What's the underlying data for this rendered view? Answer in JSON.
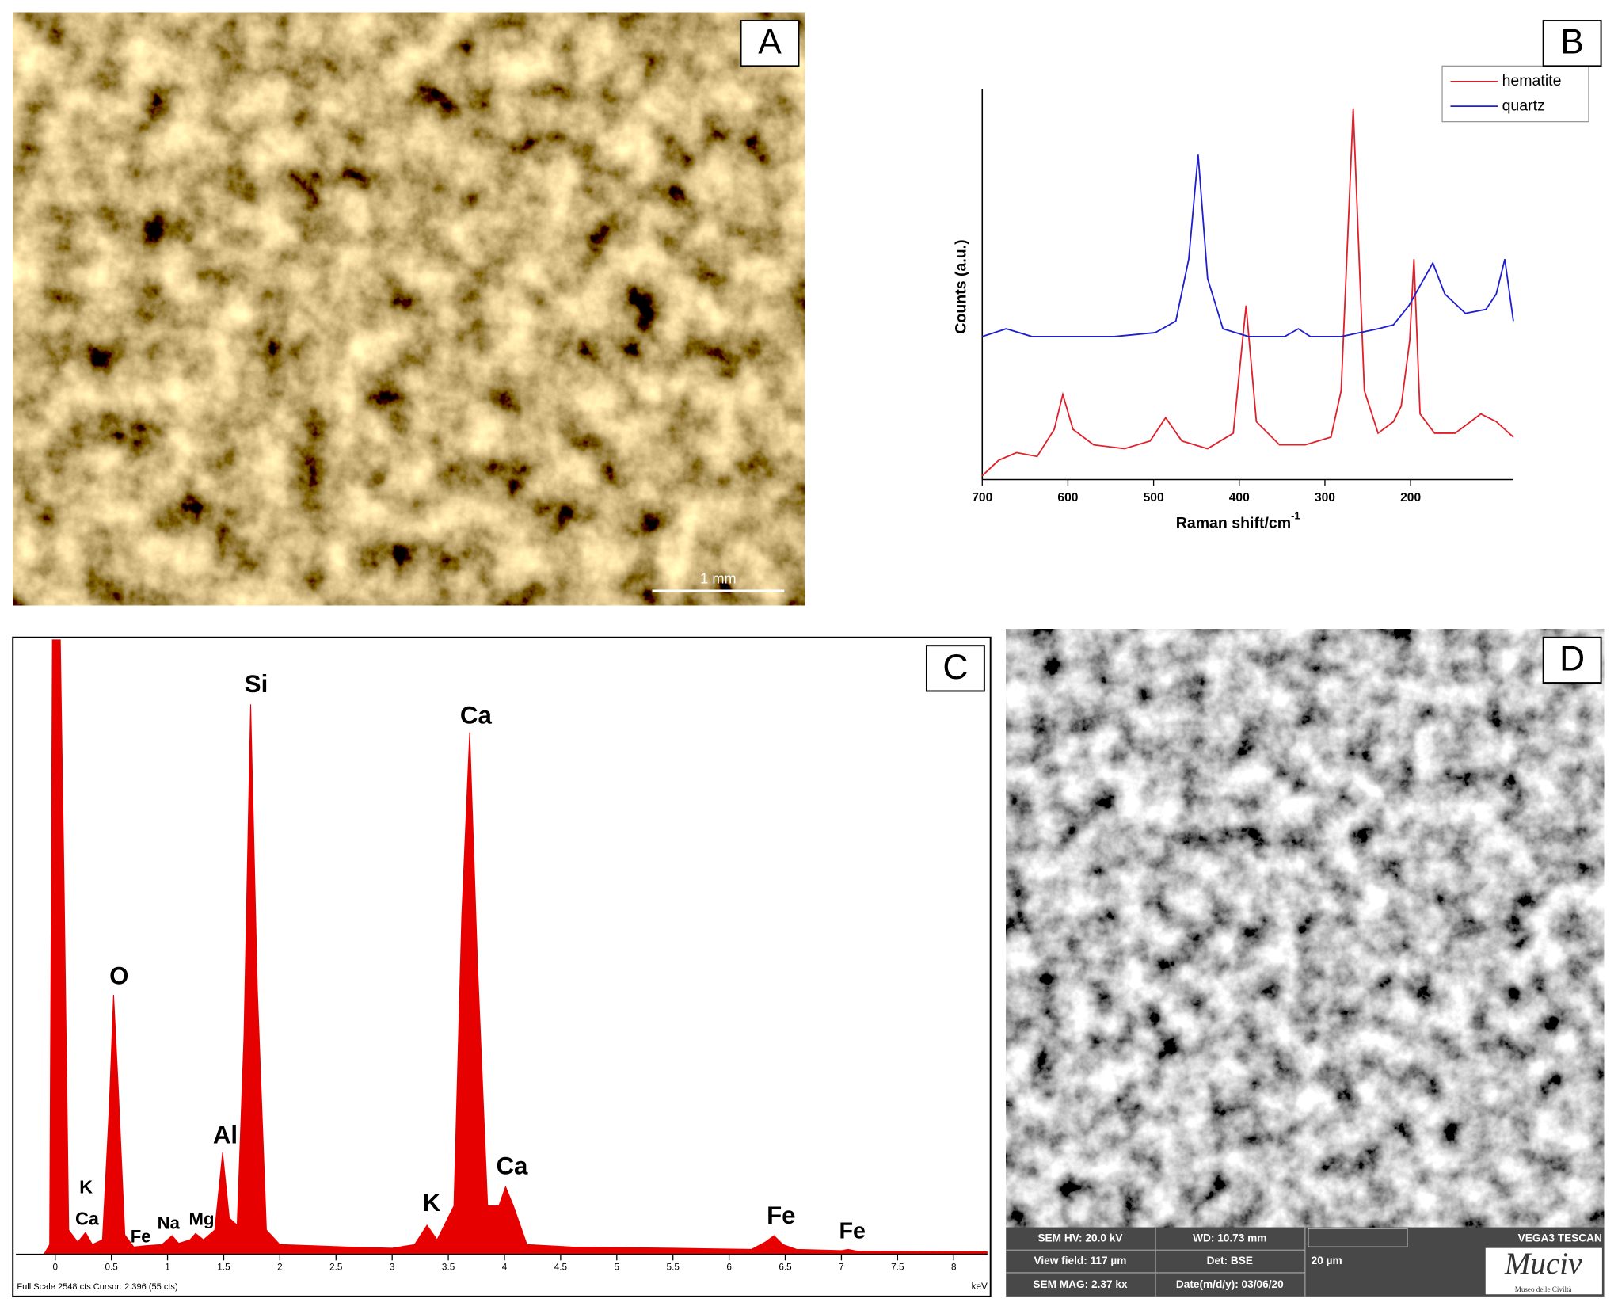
{
  "panel_labels": [
    "A",
    "B",
    "C",
    "D"
  ],
  "micrograph": {
    "scale_bar": "1 mm"
  },
  "chart_data": [
    {
      "type": "line",
      "xlabel": "Raman shift/cm",
      "xlabel_sup": "-1",
      "ylabel": "Counts (a.u.)",
      "xlim": [
        700,
        80
      ],
      "xticks": [
        700,
        600,
        500,
        400,
        300,
        200
      ],
      "ylim": [
        0,
        100
      ],
      "legend": "upper right",
      "series": [
        {
          "name": "hematite",
          "color": "#e0202a",
          "x": [
            700,
            681,
            660,
            636,
            616,
            606,
            594,
            570,
            534,
            504,
            486,
            467,
            437,
            407,
            392,
            380,
            353,
            323,
            293,
            281,
            267,
            254,
            238,
            220,
            211,
            201,
            196,
            189,
            172,
            148,
            130,
            118,
            100,
            80
          ],
          "values": [
            1,
            5,
            7,
            6,
            13,
            22,
            13,
            9,
            8,
            10,
            16,
            10,
            8,
            12,
            45,
            15,
            9,
            9,
            11,
            23,
            96,
            23,
            12,
            15,
            19,
            36,
            57,
            17,
            12,
            12,
            15,
            17,
            15,
            11
          ]
        },
        {
          "name": "quartz",
          "color": "#1f1fd0",
          "x": [
            700,
            672,
            642,
            594,
            546,
            498,
            474,
            459,
            448,
            437,
            419,
            389,
            365,
            347,
            331,
            317,
            281,
            238,
            220,
            202,
            174,
            160,
            136,
            112,
            100,
            90,
            80
          ],
          "values": [
            37,
            39,
            37,
            37,
            37,
            38,
            41,
            57,
            84,
            52,
            39,
            37,
            37,
            37,
            39,
            37,
            37,
            39,
            40,
            45,
            56,
            48,
            43,
            44,
            48,
            57,
            41
          ]
        }
      ]
    },
    {
      "type": "area",
      "color": "#e60000",
      "xunit": "keV",
      "footer": "Full Scale 2548 cts Cursor: 2.396 (55 cts)",
      "xlim": [
        -0.35,
        8.3
      ],
      "ylim": [
        0,
        2548
      ],
      "xticks": [
        0,
        0.5,
        1,
        1.5,
        2,
        2.5,
        3,
        3.5,
        4,
        4.5,
        5,
        5.5,
        6,
        6.5,
        7,
        7.5,
        8
      ],
      "x": [
        -0.1,
        -0.05,
        -0.02,
        0.03,
        0.08,
        0.12,
        0.2,
        0.27,
        0.33,
        0.42,
        0.48,
        0.52,
        0.56,
        0.62,
        0.7,
        0.8,
        0.95,
        1.04,
        1.1,
        1.2,
        1.25,
        1.32,
        1.42,
        1.49,
        1.55,
        1.62,
        1.68,
        1.74,
        1.8,
        1.88,
        2.0,
        2.3,
        2.6,
        3.0,
        3.2,
        3.31,
        3.4,
        3.55,
        3.62,
        3.69,
        3.76,
        3.85,
        3.95,
        4.01,
        4.08,
        4.2,
        4.6,
        5.5,
        6.2,
        6.32,
        6.4,
        6.48,
        6.6,
        7.0,
        7.06,
        7.15,
        8.3
      ],
      "values": [
        0,
        40,
        3000,
        3000,
        1500,
        100,
        50,
        90,
        40,
        60,
        600,
        1075,
        700,
        80,
        30,
        35,
        40,
        77,
        45,
        60,
        86,
        60,
        100,
        421,
        150,
        120,
        900,
        2279,
        1100,
        100,
        40,
        35,
        30,
        25,
        40,
        120,
        60,
        200,
        1400,
        2163,
        1200,
        200,
        200,
        280,
        200,
        40,
        30,
        25,
        20,
        50,
        77,
        40,
        20,
        15,
        20,
        12,
        10
      ],
      "peak_labels": [
        "Si",
        "O",
        "Al",
        "Ca",
        "Ca",
        "K",
        "Fe",
        "Fe",
        "K",
        "Ca",
        "Fe",
        "Na",
        "Mg"
      ]
    }
  ],
  "sem": {
    "hv": "SEM HV: 20.0 kV",
    "wd": "WD: 10.73 mm",
    "instrument": "VEGA3 TESCAN",
    "view_field": "View field: 117 µm",
    "detector": "Det: BSE",
    "scale": "20 µm",
    "mag": "SEM MAG: 2.37 kx",
    "date": "Date(m/d/y): 03/06/20",
    "logo": "Muciv",
    "logo_sub": "Museo delle Civiltà"
  }
}
